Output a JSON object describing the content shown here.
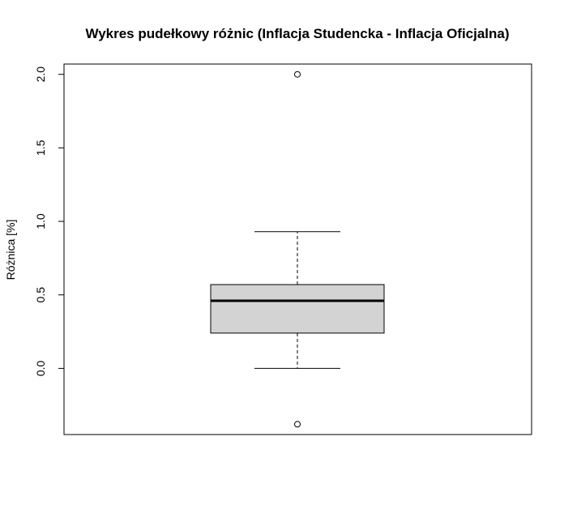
{
  "chart_data": {
    "type": "boxplot",
    "title": "Wykres pudełkowy różnic (Inflacja Studencka - Inflacja Oficjalna)",
    "xlabel": "",
    "ylabel": "Różnica [%]",
    "ylim": [
      -0.45,
      2.07
    ],
    "yticks": [
      0.0,
      0.5,
      1.0,
      1.5,
      2.0
    ],
    "ytick_labels": [
      "0.0",
      "0.5",
      "1.0",
      "1.5",
      "2.0"
    ],
    "grid": false,
    "box": {
      "whisker_low": 0.0,
      "q1": 0.24,
      "median": 0.46,
      "q3": 0.57,
      "whisker_high": 0.93,
      "outliers": [
        2.0,
        -0.38
      ]
    },
    "colors": {
      "box_fill": "#d3d3d3",
      "stroke": "#000000"
    }
  }
}
